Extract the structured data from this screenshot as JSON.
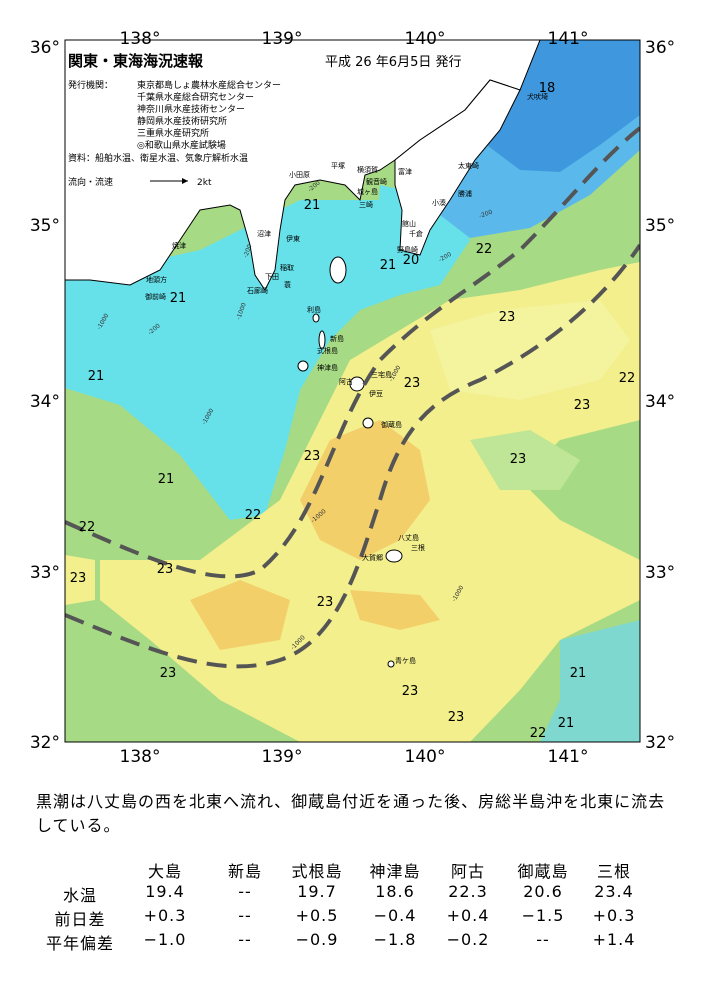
{
  "header": {
    "title": "関東・東海海況速報",
    "issued": "平成 26 年6月5日 発行",
    "publisher_label": "発行機関：",
    "publishers": [
      "東京都島しょ農林水産総合センター",
      "千葉県水産総合研究センター",
      "神奈川県水産技術センター",
      "静岡県水産技術研究所",
      "三重県水産研究所",
      "◎和歌山県水産試験場"
    ],
    "source": "資料：船舶水温、衛星水温、気象庁解析水温",
    "legend_label": "流向・流速",
    "legend_scale": "2kt"
  },
  "axes": {
    "longitudes": [
      "138°",
      "139°",
      "140°",
      "141°"
    ],
    "latitudes": [
      "36°",
      "35°",
      "34°",
      "33°",
      "32°"
    ]
  },
  "places": [
    "犬吠埼",
    "太東崎",
    "勝浦",
    "小湊",
    "館山",
    "千倉",
    "野島崎",
    "富津",
    "観音崎",
    "城ヶ島",
    "三崎",
    "横須賀",
    "平塚",
    "小田原",
    "伊東",
    "沼津",
    "焼津",
    "御前崎",
    "地頭方",
    "稲取",
    "下田",
    "石廊崎",
    "蓑",
    "利島",
    "新島",
    "式根島",
    "神津島",
    "三宅島",
    "阿古",
    "伊豆",
    "御蔵島",
    "八丈島",
    "大賀郷",
    "三根",
    "青ケ島"
  ],
  "isotherm_labels": [
    18,
    21,
    21,
    20,
    22,
    21,
    23,
    21,
    23,
    22,
    23,
    23,
    23,
    21,
    22,
    22,
    23,
    23,
    23,
    23,
    21,
    23,
    23,
    21,
    22
  ],
  "depth_labels": [
    "-1000",
    "-1000",
    "-1000",
    "-1000",
    "-1000",
    "-1000",
    "-1000",
    "-200",
    "-200",
    "-200",
    "-200",
    "-200"
  ],
  "summary": "黒潮は八丈島の西を北東へ流れ、御蔵島付近を通った後、房総半島沖を北東に流去している。",
  "table": {
    "columns": [
      "大島",
      "新島",
      "式根島",
      "神津島",
      "阿古",
      "御蔵島",
      "三根"
    ],
    "rows": [
      {
        "label": "水温",
        "values": [
          "19.4",
          "--",
          "19.7",
          "18.6",
          "22.3",
          "20.6",
          "23.4"
        ]
      },
      {
        "label": "前日差",
        "values": [
          "+0.3",
          "--",
          "+0.5",
          "−0.4",
          "+0.4",
          "−1.5",
          "+0.3"
        ]
      },
      {
        "label": "平年偏差",
        "values": [
          "−1.0",
          "--",
          "−0.9",
          "−1.8",
          "−0.2",
          "--",
          "+1.4"
        ]
      }
    ]
  }
}
